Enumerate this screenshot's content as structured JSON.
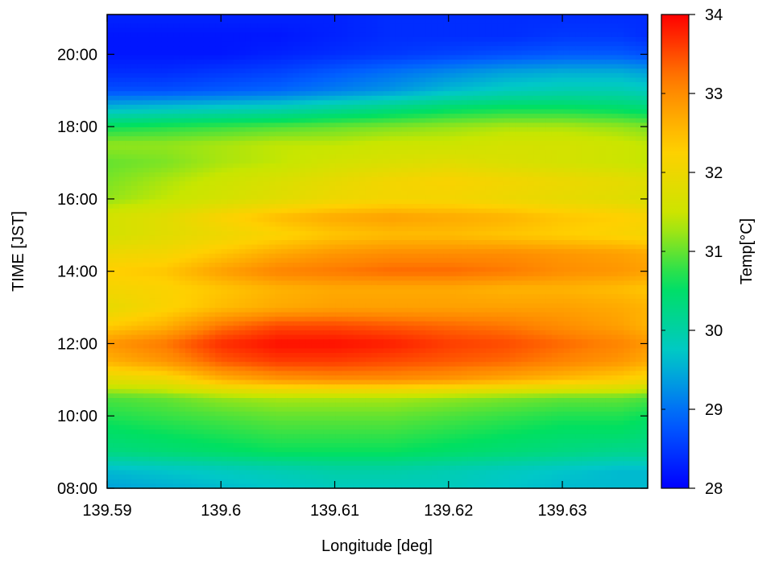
{
  "chart_data": {
    "type": "heatmap",
    "title": "",
    "xlabel": "Longitude [deg]",
    "ylabel": "TIME [JST]",
    "colorbar_label": "Temp[°C]",
    "x_ticks": [
      {
        "value": 139.59,
        "label": "139.59"
      },
      {
        "value": 139.6,
        "label": "139.6"
      },
      {
        "value": 139.61,
        "label": "139.61"
      },
      {
        "value": 139.62,
        "label": "139.62"
      },
      {
        "value": 139.63,
        "label": "139.63"
      }
    ],
    "y_ticks": [
      {
        "value": 8,
        "label": "08:00"
      },
      {
        "value": 10,
        "label": "10:00"
      },
      {
        "value": 12,
        "label": "12:00"
      },
      {
        "value": 14,
        "label": "14:00"
      },
      {
        "value": 16,
        "label": "16:00"
      },
      {
        "value": 18,
        "label": "18:00"
      },
      {
        "value": 20,
        "label": "20:00"
      }
    ],
    "colorbar_ticks": [
      {
        "value": 28,
        "label": "28"
      },
      {
        "value": 29,
        "label": "29"
      },
      {
        "value": 30,
        "label": "30"
      },
      {
        "value": 31,
        "label": "31"
      },
      {
        "value": 32,
        "label": "32"
      },
      {
        "value": 33,
        "label": "33"
      },
      {
        "value": 34,
        "label": "34"
      }
    ],
    "xlim": [
      139.59,
      139.6375
    ],
    "ylim": [
      8,
      21.1
    ],
    "clim": [
      28,
      34
    ],
    "colormap": [
      "#0000ff",
      "#0060ff",
      "#00c8c8",
      "#00e060",
      "#c8e600",
      "#ffd000",
      "#ff8000",
      "#ff0000"
    ],
    "grid": false,
    "x": [
      139.59,
      139.595,
      139.6,
      139.605,
      139.61,
      139.615,
      139.62,
      139.625,
      139.63,
      139.635,
      139.6375
    ],
    "y": [
      8.0,
      8.5,
      9.0,
      9.5,
      10.0,
      10.5,
      11.0,
      11.5,
      12.0,
      12.5,
      13.0,
      13.5,
      14.0,
      14.5,
      15.0,
      15.5,
      16.0,
      16.5,
      17.0,
      17.5,
      18.0,
      18.5,
      19.0,
      19.5,
      20.0,
      20.5,
      21.0
    ],
    "z": [
      [
        29.4,
        29.5,
        29.6,
        29.7,
        29.8,
        29.8,
        29.8,
        29.7,
        29.6,
        29.6,
        29.6
      ],
      [
        29.6,
        29.7,
        29.8,
        29.9,
        30.0,
        30.0,
        29.9,
        29.8,
        29.7,
        29.6,
        29.6
      ],
      [
        30.3,
        30.4,
        30.5,
        30.6,
        30.6,
        30.6,
        30.5,
        30.4,
        30.3,
        30.2,
        30.2
      ],
      [
        30.5,
        30.6,
        30.7,
        30.8,
        30.8,
        30.8,
        30.7,
        30.6,
        30.5,
        30.5,
        30.4
      ],
      [
        30.7,
        30.8,
        30.9,
        31.0,
        31.0,
        31.0,
        30.9,
        30.8,
        30.7,
        30.7,
        30.6
      ],
      [
        30.9,
        31.0,
        31.2,
        31.3,
        31.3,
        31.3,
        31.2,
        31.1,
        31.0,
        31.0,
        30.9
      ],
      [
        31.8,
        32.0,
        32.6,
        32.9,
        33.0,
        33.0,
        32.9,
        32.7,
        32.5,
        32.3,
        32.1
      ],
      [
        32.6,
        32.9,
        33.4,
        33.6,
        33.6,
        33.5,
        33.4,
        33.3,
        33.1,
        32.9,
        32.7
      ],
      [
        32.9,
        33.2,
        33.7,
        33.9,
        33.9,
        33.8,
        33.6,
        33.5,
        33.3,
        33.1,
        32.9
      ],
      [
        32.3,
        32.6,
        33.2,
        33.5,
        33.5,
        33.4,
        33.3,
        33.2,
        33.0,
        32.8,
        32.6
      ],
      [
        31.9,
        32.2,
        32.5,
        32.7,
        32.8,
        32.8,
        32.8,
        32.8,
        32.8,
        32.7,
        32.6
      ],
      [
        32.1,
        32.2,
        32.4,
        32.6,
        32.7,
        32.7,
        32.7,
        32.6,
        32.6,
        32.5,
        32.4
      ],
      [
        32.3,
        32.4,
        32.8,
        33.1,
        33.2,
        33.3,
        33.3,
        33.2,
        33.0,
        32.9,
        32.8
      ],
      [
        32.0,
        32.1,
        32.4,
        32.7,
        32.9,
        33.0,
        33.0,
        33.0,
        32.9,
        32.8,
        32.7
      ],
      [
        31.6,
        31.8,
        32.0,
        32.2,
        32.4,
        32.5,
        32.5,
        32.4,
        32.3,
        32.2,
        32.1
      ],
      [
        31.6,
        31.8,
        32.2,
        32.5,
        32.7,
        32.8,
        32.7,
        32.6,
        32.4,
        32.3,
        32.2
      ],
      [
        31.2,
        31.4,
        31.6,
        31.8,
        32.0,
        32.1,
        32.1,
        32.0,
        31.9,
        31.8,
        31.7
      ],
      [
        31.1,
        31.3,
        31.5,
        31.7,
        31.9,
        32.1,
        32.2,
        32.1,
        32.0,
        31.9,
        31.8
      ],
      [
        31.0,
        31.1,
        31.3,
        31.4,
        31.6,
        31.7,
        31.8,
        31.7,
        31.6,
        31.5,
        31.4
      ],
      [
        31.2,
        31.2,
        31.3,
        31.4,
        31.4,
        31.5,
        31.5,
        31.6,
        31.6,
        31.5,
        31.4
      ],
      [
        30.6,
        30.7,
        30.8,
        30.9,
        31.0,
        31.1,
        31.2,
        31.3,
        31.3,
        31.2,
        31.1
      ],
      [
        29.6,
        29.7,
        29.8,
        29.9,
        30.1,
        30.3,
        30.5,
        30.6,
        30.6,
        30.5,
        30.4
      ],
      [
        28.7,
        28.7,
        28.8,
        28.9,
        29.1,
        29.3,
        29.6,
        29.8,
        29.9,
        29.9,
        29.8
      ],
      [
        28.4,
        28.4,
        28.5,
        28.6,
        28.8,
        29.0,
        29.2,
        29.4,
        29.5,
        29.5,
        29.4
      ],
      [
        28.2,
        28.2,
        28.2,
        28.3,
        28.4,
        28.5,
        28.6,
        28.7,
        28.8,
        28.8,
        28.7
      ],
      [
        28.2,
        28.2,
        28.2,
        28.2,
        28.3,
        28.4,
        28.4,
        28.4,
        28.5,
        28.5,
        28.4
      ],
      [
        28.3,
        28.3,
        28.3,
        28.3,
        28.3,
        28.4,
        28.4,
        28.4,
        28.4,
        28.4,
        28.4
      ]
    ]
  }
}
